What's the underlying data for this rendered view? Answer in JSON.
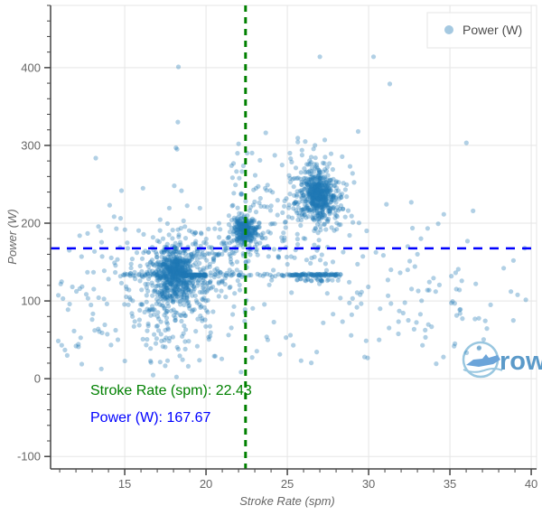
{
  "chart_data": {
    "type": "scatter",
    "title": "",
    "xlabel": "Stroke Rate (spm)",
    "ylabel": "Power (W)",
    "x_range": [
      10.44,
      40.33
    ],
    "y_range": [
      -116,
      480
    ],
    "x_ticks": [
      15,
      20,
      25,
      30,
      35,
      40
    ],
    "y_ticks": [
      -100,
      0,
      100,
      200,
      300,
      400
    ],
    "x_minor_step": 1,
    "y_minor_step": 20,
    "grid": true,
    "grid_color": "#e5e5e5",
    "axis_color": "#444444",
    "tick_label_color": "#666666",
    "point_color": "#1f77b4",
    "point_alpha": 0.35,
    "point_radius": 2.6,
    "legend": {
      "position": "top-right",
      "label": "Power (W)"
    },
    "clusters": [
      {
        "name": "main-18spm-core",
        "cx": 18.1,
        "cy": 137,
        "sx": 0.5,
        "sy": 13,
        "n": 320
      },
      {
        "name": "main-18spm-mid",
        "cx": 18.15,
        "cy": 130,
        "sx": 1.0,
        "sy": 26,
        "n": 320
      },
      {
        "name": "main-18spm-halo",
        "cx": 17.9,
        "cy": 108,
        "sx": 2.0,
        "sy": 50,
        "n": 240,
        "clip_y": [
          2,
          330
        ]
      },
      {
        "name": "bridge-19-22",
        "cx": 20.6,
        "cy": 152,
        "sx": 1.4,
        "sy": 26,
        "n": 60,
        "uniform_x": true
      },
      {
        "name": "cluster-22spm-core",
        "cx": 22.38,
        "cy": 191,
        "sx": 0.32,
        "sy": 8,
        "n": 190
      },
      {
        "name": "cluster-22spm-mid",
        "cx": 22.4,
        "cy": 188,
        "sx": 0.7,
        "sy": 15,
        "n": 130
      },
      {
        "name": "cluster-27spm-core",
        "cx": 26.9,
        "cy": 238,
        "sx": 0.42,
        "sy": 13,
        "n": 300
      },
      {
        "name": "cluster-27spm-mid",
        "cx": 26.85,
        "cy": 233,
        "sx": 0.8,
        "sy": 25,
        "n": 230
      },
      {
        "name": "cluster-27spm-halo",
        "cx": 26.8,
        "cy": 230,
        "sx": 1.4,
        "sy": 45,
        "n": 90,
        "clip_y": [
          60,
          330
        ]
      },
      {
        "name": "band-133w-sparse",
        "cx": 19.9,
        "cy": 133,
        "sx": 5.4,
        "sy": 1.1,
        "n": 70,
        "uniform_x": true
      },
      {
        "name": "band-133w-dark-left",
        "cx": 19.3,
        "cy": 133,
        "sx": 0.75,
        "sy": 0.7,
        "n": 70,
        "uniform_x": true
      },
      {
        "name": "band-133w-dark-right",
        "cx": 26.8,
        "cy": 133.5,
        "sx": 1.5,
        "sy": 0.7,
        "n": 85,
        "uniform_x": true
      },
      {
        "name": "band-127w",
        "cx": 26.95,
        "cy": 127,
        "sx": 1.45,
        "sy": 1.0,
        "n": 22,
        "uniform_x": true
      },
      {
        "name": "background-sparse",
        "cx": 24.3,
        "cy": 110,
        "sx": 13.1,
        "sy": 75,
        "n": 170,
        "uniform_x": true,
        "clip_y": [
          3,
          320
        ]
      },
      {
        "name": "upper-mid-sparse",
        "cx": 23.4,
        "cy": 253,
        "sx": 1.9,
        "sy": 38,
        "n": 35,
        "uniform_x": true,
        "clip_y": [
          210,
          295
        ]
      },
      {
        "name": "right-sparse",
        "cx": 34.4,
        "cy": 110,
        "sx": 5.4,
        "sy": 35,
        "n": 30,
        "uniform_x": true,
        "clip_y": [
          35,
          170
        ]
      },
      {
        "name": "left-sparse",
        "cx": 12.4,
        "cy": 80,
        "sx": 1.6,
        "sy": 35,
        "n": 22,
        "uniform_x": true,
        "clip_y": [
          18,
          140
        ]
      },
      {
        "name": "mid-gap-sparse",
        "cx": 24.6,
        "cy": 182,
        "sx": 1.1,
        "sy": 22,
        "n": 20,
        "uniform_x": true
      }
    ],
    "outliers": [
      [
        18.3,
        401
      ],
      [
        18.27,
        330
      ],
      [
        18.15,
        297
      ],
      [
        18.22,
        295
      ],
      [
        27.0,
        414
      ],
      [
        30.3,
        414
      ],
      [
        31.3,
        379
      ],
      [
        26.1,
        305
      ],
      [
        27.3,
        307
      ],
      [
        26.7,
        300
      ],
      [
        22.0,
        302
      ],
      [
        39.6,
        168
      ],
      [
        38.9,
        75
      ],
      [
        36.8,
        40
      ],
      [
        34.6,
        28
      ],
      [
        37.5,
        95
      ],
      [
        11.2,
        103
      ],
      [
        12.0,
        42
      ],
      [
        33.0,
        160
      ],
      [
        32.4,
        140
      ]
    ],
    "reference_lines": [
      {
        "orientation": "horizontal",
        "value": 167.67,
        "color": "#0000ff",
        "dash": "10 8",
        "width": 2.5
      },
      {
        "orientation": "vertical",
        "value": 22.43,
        "color": "#008000",
        "dash": "7 6",
        "width": 3
      }
    ],
    "annotations": [
      {
        "text": "Stroke Rate (spm):  22.43",
        "color": "#008000"
      },
      {
        "text": "Power (W): 167.67",
        "color": "#0000ff"
      }
    ]
  },
  "legend": {
    "label": "Power (W)",
    "marker_color": "#1f77b4"
  },
  "watermark": {
    "text": "rows",
    "color": "#4a90c4",
    "ring_color": "#8fc1dd",
    "boat_color": "#5b9bd5"
  }
}
